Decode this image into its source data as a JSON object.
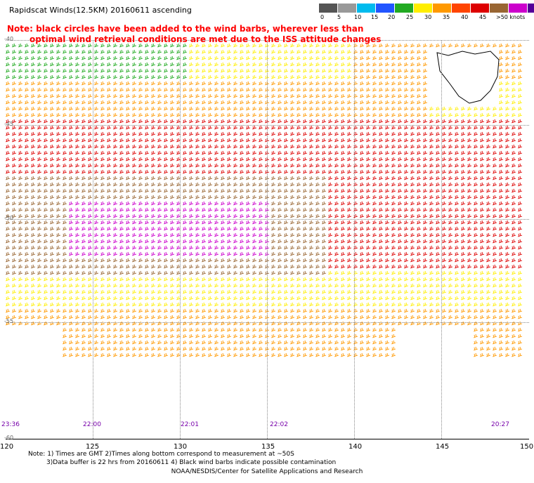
{
  "title": "Rapidscat Winds(12.5KM) 20160611 ascending",
  "legend": {
    "labels": [
      "0",
      "5",
      "10",
      "15",
      "20",
      "25",
      "30",
      "35",
      "40",
      "45",
      ">50 knots"
    ],
    "colors": [
      "#555555",
      "#999999",
      "#00bbee",
      "#2255ff",
      "#22aa22",
      "#ffee00",
      "#ff9900",
      "#ff4400",
      "#dd0000",
      "#996633",
      "#cc00cc",
      "#550099"
    ]
  },
  "notice": {
    "line1": "Note: black circles have been added to the wind barbs, wherever less than",
    "line2": "optimal wind retrieval conditions are met due to the ISS attitude changes"
  },
  "axes": {
    "lon_ticks": [
      "120",
      "125",
      "130",
      "135",
      "140",
      "145",
      "150"
    ],
    "lat_ticks": [
      "-40",
      "-45",
      "-50",
      "-55",
      "-60"
    ]
  },
  "times": [
    "23:36",
    "22:00",
    "22:01",
    "22:02",
    "20:27"
  ],
  "footnotes": {
    "line1": "Note: 1) Times are GMT 2)Times along bottom correspond to measurement at ~50S",
    "line2": "3)Data buffer is 22 hrs from 20160611 4) Black wind barbs indicate possible contamination",
    "line3": "NOAA/NESDIS/Center for Satellite Applications and Research"
  }
}
